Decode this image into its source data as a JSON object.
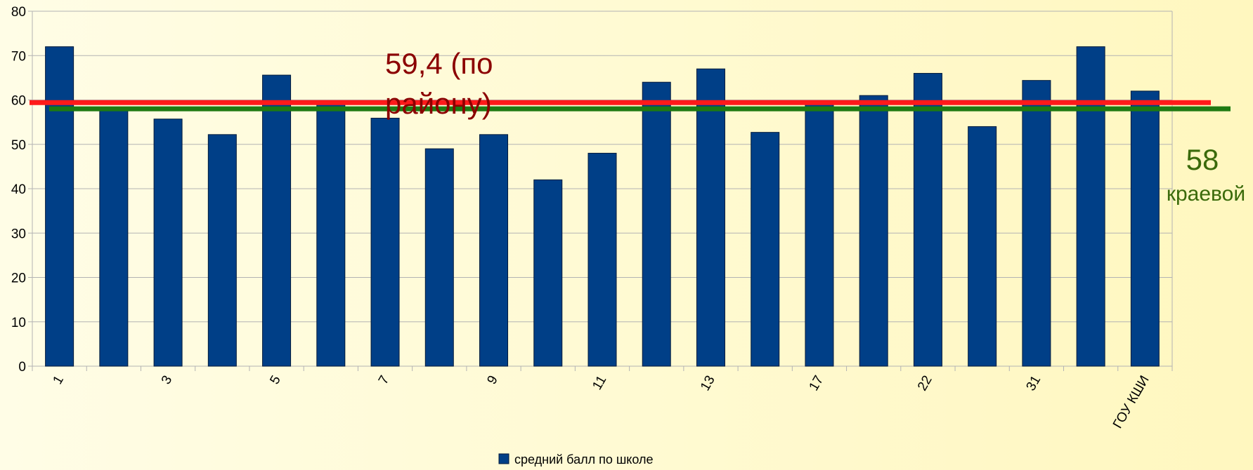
{
  "chart_data": {
    "type": "bar",
    "categories": [
      "1",
      null,
      "3",
      null,
      "5",
      null,
      "7",
      null,
      "9",
      null,
      "11",
      null,
      "13",
      null,
      "17",
      null,
      "22",
      null,
      "31",
      null,
      "ГОУ КШИ"
    ],
    "series": [
      {
        "name": "средний балл по школе",
        "color": "#003f87",
        "values": [
          72,
          58,
          55.7,
          52.2,
          65.6,
          59,
          55.9,
          49,
          52.2,
          42,
          48,
          64,
          67,
          52.7,
          59,
          61,
          66,
          54,
          64.4,
          72,
          62
        ]
      }
    ],
    "ylim": [
      0,
      80
    ],
    "yticks": [
      0,
      10,
      20,
      30,
      40,
      50,
      60,
      70,
      80
    ],
    "grid": true,
    "legend": "bottom",
    "reference_lines": [
      {
        "value": 59.4,
        "color": "#ff1a1a",
        "label": [
          "59,4 (по",
          "району)"
        ],
        "label_color": "#8b0000"
      },
      {
        "value": 58,
        "color": "#1e7a12",
        "label": [
          "58",
          "краевой"
        ],
        "label_color": "#3a6a0a"
      }
    ]
  }
}
